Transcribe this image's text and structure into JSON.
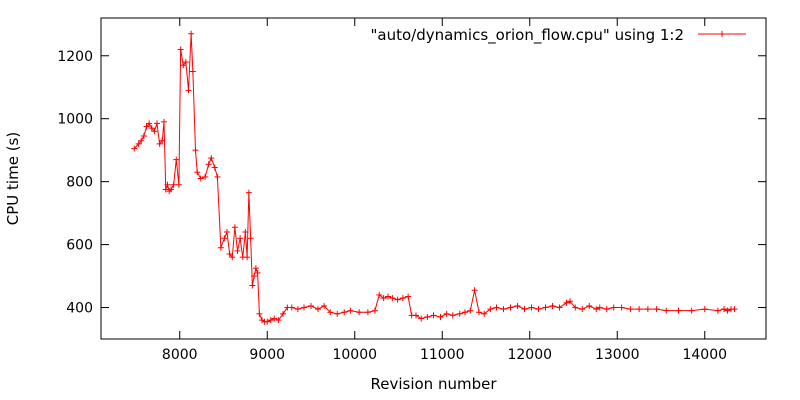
{
  "chart_data": {
    "type": "line",
    "title": "",
    "xlabel": "Revision number",
    "ylabel": "CPU time (s)",
    "xlim": [
      7100,
      14700
    ],
    "ylim": [
      300,
      1320
    ],
    "xticks": [
      8000,
      9000,
      10000,
      11000,
      12000,
      13000,
      14000
    ],
    "yticks": [
      400,
      600,
      800,
      1000,
      1200
    ],
    "legend_position": "top-right",
    "grid": false,
    "series": [
      {
        "name": "\"auto/dynamics_orion_flow.cpu\" using 1:2",
        "color": "#ff0000",
        "marker": "plus",
        "x": [
          7480,
          7530,
          7560,
          7590,
          7620,
          7650,
          7680,
          7710,
          7740,
          7770,
          7800,
          7820,
          7840,
          7860,
          7880,
          7900,
          7930,
          7960,
          7990,
          8010,
          8040,
          8070,
          8100,
          8130,
          8150,
          8180,
          8200,
          8240,
          8290,
          8330,
          8360,
          8400,
          8430,
          8470,
          8510,
          8540,
          8570,
          8600,
          8630,
          8660,
          8690,
          8720,
          8750,
          8770,
          8790,
          8810,
          8830,
          8850,
          8870,
          8890,
          8910,
          8940,
          8970,
          9000,
          9040,
          9080,
          9130,
          9180,
          9230,
          9280,
          9350,
          9420,
          9500,
          9580,
          9650,
          9720,
          9800,
          9880,
          9950,
          10050,
          10150,
          10230,
          10280,
          10330,
          10380,
          10430,
          10490,
          10550,
          10610,
          10650,
          10700,
          10760,
          10830,
          10900,
          10980,
          11050,
          11120,
          11200,
          11260,
          11320,
          11370,
          11420,
          11480,
          11550,
          11620,
          11700,
          11780,
          11860,
          11940,
          12020,
          12100,
          12180,
          12260,
          12340,
          12420,
          12460,
          12520,
          12600,
          12680,
          12760,
          12800,
          12880,
          12960,
          13050,
          13150,
          13250,
          13350,
          13450,
          13560,
          13700,
          13850,
          14000,
          14150,
          14220,
          14260,
          14300,
          14340
        ],
        "y": [
          905,
          920,
          930,
          945,
          975,
          985,
          970,
          960,
          985,
          920,
          930,
          990,
          775,
          790,
          770,
          775,
          790,
          870,
          790,
          1220,
          1170,
          1180,
          1090,
          1270,
          1150,
          900,
          830,
          810,
          815,
          855,
          875,
          845,
          815,
          590,
          620,
          640,
          570,
          560,
          655,
          580,
          620,
          560,
          640,
          560,
          765,
          620,
          470,
          500,
          525,
          510,
          380,
          360,
          355,
          355,
          360,
          365,
          360,
          380,
          400,
          400,
          395,
          400,
          405,
          395,
          405,
          385,
          380,
          385,
          390,
          385,
          385,
          390,
          440,
          430,
          435,
          430,
          425,
          430,
          435,
          375,
          375,
          365,
          370,
          375,
          370,
          380,
          375,
          380,
          385,
          390,
          455,
          385,
          380,
          395,
          400,
          395,
          400,
          405,
          395,
          400,
          395,
          400,
          405,
          400,
          415,
          420,
          400,
          395,
          405,
          395,
          400,
          395,
          400,
          400,
          395,
          395,
          395,
          395,
          390,
          390,
          390,
          395,
          390,
          395,
          390,
          395,
          395
        ]
      }
    ]
  }
}
